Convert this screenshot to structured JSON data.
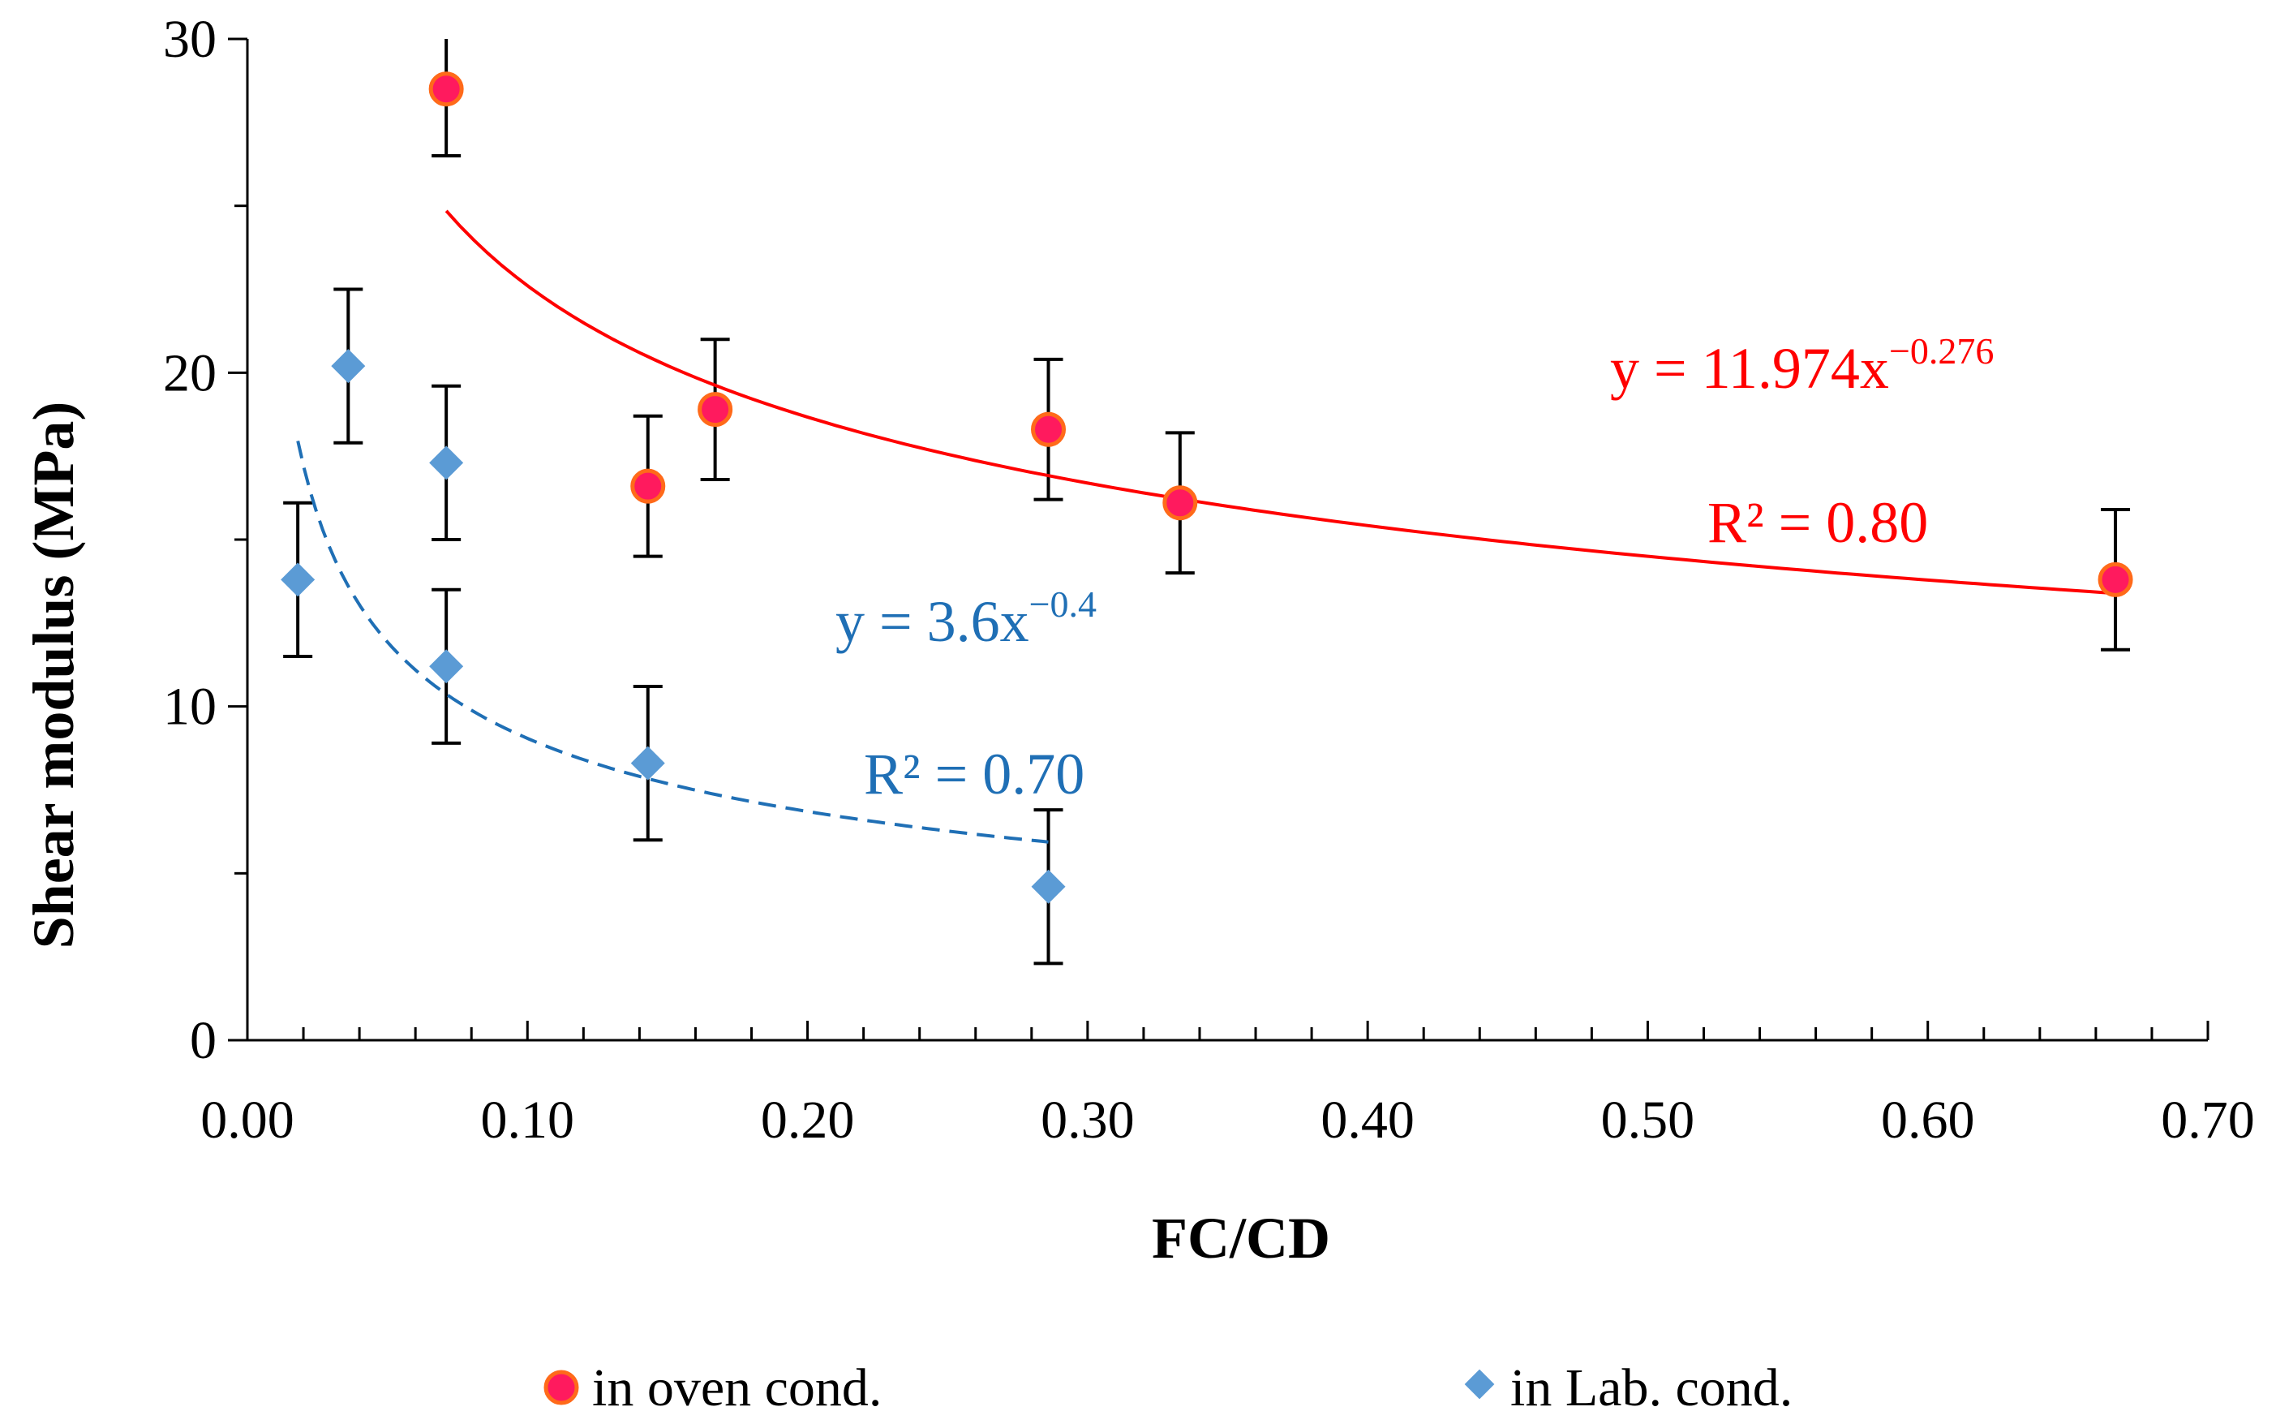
{
  "chart_data": {
    "type": "scatter",
    "title": "",
    "xlabel": "FC/CD",
    "ylabel": "Shear modulus (MPa)",
    "xlim": [
      0,
      0.7
    ],
    "ylim": [
      0,
      30
    ],
    "x_ticks": [
      "0.00",
      "0.10",
      "0.20",
      "0.30",
      "0.40",
      "0.50",
      "0.60",
      "0.70"
    ],
    "y_ticks": [
      "0",
      "10",
      "20",
      "30"
    ],
    "grid": false,
    "legend_position": "bottom",
    "series": [
      {
        "name": "in oven cond.",
        "marker": "circle",
        "color": "#ff1a5e",
        "edge_color": "#ff6a1a",
        "points": [
          {
            "x": 0.071,
            "y": 28.5,
            "err": 2.0
          },
          {
            "x": 0.143,
            "y": 16.6,
            "err": 2.1
          },
          {
            "x": 0.167,
            "y": 18.9,
            "err": 2.1
          },
          {
            "x": 0.286,
            "y": 18.3,
            "err": 2.1
          },
          {
            "x": 0.333,
            "y": 16.1,
            "err": 2.1
          },
          {
            "x": 0.667,
            "y": 13.8,
            "err": 2.1
          }
        ],
        "trendline": {
          "type": "power",
          "a": 11.974,
          "b": -0.276,
          "x_range": [
            0.071,
            0.667
          ],
          "style": "solid",
          "color": "#ff0000",
          "equation_base": "y = 11.974x",
          "equation_exp": "−0.276",
          "r2_label": "R² = 0.80"
        }
      },
      {
        "name": "in Lab. cond.",
        "marker": "diamond",
        "color": "#5b9bd5",
        "points": [
          {
            "x": 0.018,
            "y": 13.8,
            "err": 2.3
          },
          {
            "x": 0.036,
            "y": 20.2,
            "err": 2.3
          },
          {
            "x": 0.071,
            "y": 17.3,
            "err": 2.3
          },
          {
            "x": 0.071,
            "y": 11.2,
            "err": 2.3
          },
          {
            "x": 0.143,
            "y": 8.3,
            "err": 2.3
          },
          {
            "x": 0.286,
            "y": 4.6,
            "err": 2.3
          }
        ],
        "trendline": {
          "type": "power",
          "a": 3.6,
          "b": -0.4,
          "x_range": [
            0.018,
            0.286
          ],
          "style": "dashed",
          "color": "#1f6fb5",
          "equation_base": "y = 3.6x",
          "equation_exp": "−0.4",
          "r2_label": "R² = 0.70"
        }
      }
    ]
  },
  "legend": {
    "oven_label": "in oven cond.",
    "lab_label": "in Lab. cond."
  }
}
